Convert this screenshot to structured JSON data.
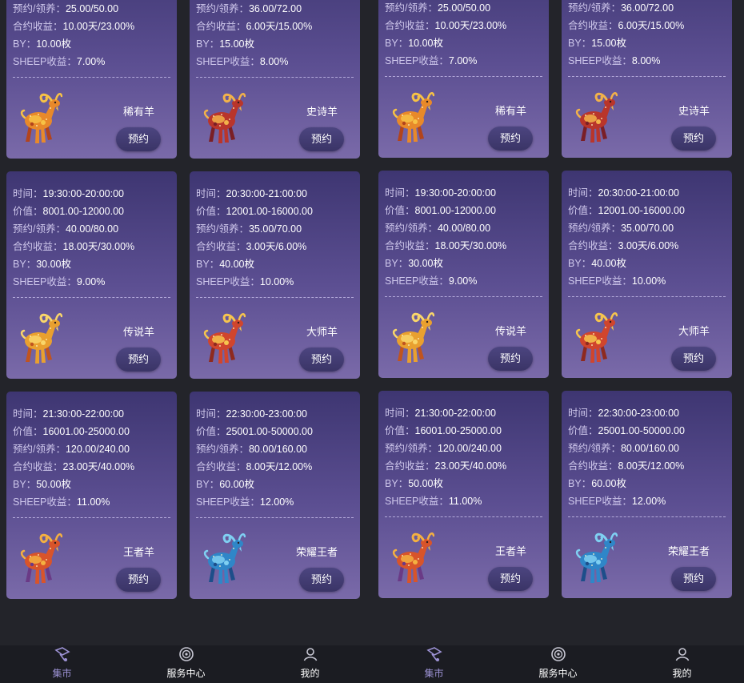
{
  "labels": {
    "time": "时间：",
    "value": "价值：",
    "reserve": "预约/领养：",
    "contract": "合约收益：",
    "by": "BY：",
    "sheep": "SHEEP收益："
  },
  "reserve_button": "预约",
  "cards": [
    {
      "time": "",
      "value": "",
      "reserve": "25.00/50.00",
      "contract": "10.00天/23.00%",
      "by": "10.00枚",
      "sheep": "7.00%",
      "name": "稀有羊",
      "goat": "gold-orange"
    },
    {
      "time": "",
      "value": "",
      "reserve": "36.00/72.00",
      "contract": "6.00天/15.00%",
      "by": "15.00枚",
      "sheep": "8.00%",
      "name": "史诗羊",
      "goat": "red-ornate"
    },
    {
      "time": "19:30:00-20:00:00",
      "value": "8001.00-12000.00",
      "reserve": "40.00/80.00",
      "contract": "18.00天/30.00%",
      "by": "30.00枚",
      "sheep": "9.00%",
      "name": "传说羊",
      "goat": "gold-curl"
    },
    {
      "time": "20:30:00-21:00:00",
      "value": "12001.00-16000.00",
      "reserve": "35.00/70.00",
      "contract": "3.00天/6.00%",
      "by": "40.00枚",
      "sheep": "10.00%",
      "name": "大师羊",
      "goat": "gold-red-curl"
    },
    {
      "time": "21:30:00-22:00:00",
      "value": "16001.00-25000.00",
      "reserve": "120.00/240.00",
      "contract": "23.00天/40.00%",
      "by": "50.00枚",
      "sheep": "11.00%",
      "name": "王者羊",
      "goat": "orange-red"
    },
    {
      "time": "22:30:00-23:00:00",
      "value": "25001.00-50000.00",
      "reserve": "80.00/160.00",
      "contract": "8.00天/12.00%",
      "by": "60.00枚",
      "sheep": "12.00%",
      "name": "荣耀王者",
      "goat": "blue"
    }
  ],
  "tabs": [
    {
      "label": "集市",
      "icon": "market-icon",
      "active": true
    },
    {
      "label": "服务中心",
      "icon": "service-center-icon",
      "active": false
    },
    {
      "label": "我的",
      "icon": "profile-icon",
      "active": false
    }
  ],
  "colors": {
    "card_top": "#3e3672",
    "card_bottom": "#7a6aa9",
    "background": "#23242a",
    "tab_active": "#9e93d6"
  }
}
